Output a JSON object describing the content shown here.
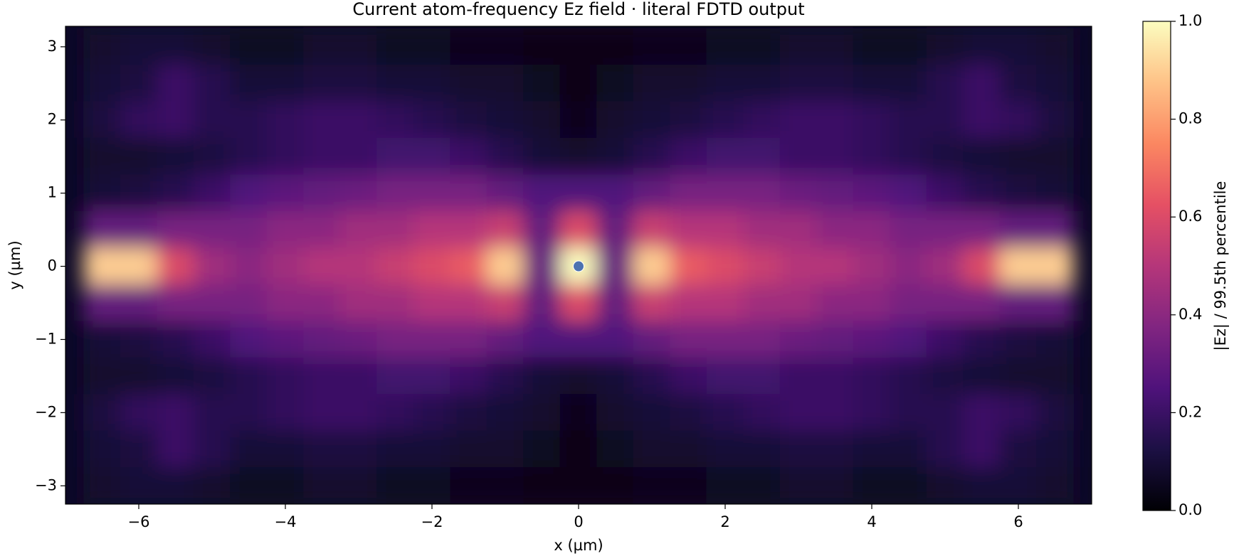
{
  "chart_data": {
    "type": "heatmap",
    "title": "Current atom-frequency Ez field · literal FDTD output",
    "xlabel": "x (µm)",
    "ylabel": "y (µm)",
    "colorbar_label": "|Ez| / 99.5th percentile",
    "colormap": "magma",
    "x": [
      -6.5,
      -6,
      -5.5,
      -5,
      -4.5,
      -4,
      -3.5,
      -3,
      -2.5,
      -2,
      -1.5,
      -1,
      -0.5,
      0,
      0.5,
      1,
      1.5,
      2,
      2.5,
      3,
      3.5,
      4,
      4.5,
      5,
      5.5,
      6,
      6.5
    ],
    "y": [
      3,
      2.5,
      2,
      1.5,
      1,
      0.5,
      0,
      -0.5,
      -1,
      -1.5,
      -2,
      -2.5,
      -3
    ],
    "z": [
      [
        0.08,
        0.1,
        0.1,
        0.08,
        0.06,
        0.06,
        0.08,
        0.08,
        0.06,
        0.06,
        0.05,
        0.05,
        0.04,
        0.04,
        0.04,
        0.05,
        0.05,
        0.06,
        0.06,
        0.08,
        0.08,
        0.06,
        0.06,
        0.08,
        0.1,
        0.1,
        0.08
      ],
      [
        0.1,
        0.12,
        0.2,
        0.15,
        0.1,
        0.1,
        0.12,
        0.12,
        0.1,
        0.1,
        0.08,
        0.08,
        0.06,
        0.04,
        0.06,
        0.08,
        0.08,
        0.1,
        0.1,
        0.12,
        0.12,
        0.1,
        0.1,
        0.15,
        0.2,
        0.12,
        0.1
      ],
      [
        0.12,
        0.18,
        0.2,
        0.15,
        0.15,
        0.18,
        0.2,
        0.2,
        0.18,
        0.15,
        0.12,
        0.1,
        0.08,
        0.05,
        0.08,
        0.1,
        0.12,
        0.15,
        0.18,
        0.2,
        0.2,
        0.18,
        0.15,
        0.15,
        0.2,
        0.18,
        0.12
      ],
      [
        0.08,
        0.08,
        0.1,
        0.12,
        0.15,
        0.18,
        0.2,
        0.2,
        0.22,
        0.22,
        0.2,
        0.15,
        0.1,
        0.08,
        0.1,
        0.15,
        0.2,
        0.22,
        0.22,
        0.2,
        0.2,
        0.18,
        0.15,
        0.12,
        0.1,
        0.08,
        0.08
      ],
      [
        0.1,
        0.12,
        0.15,
        0.2,
        0.25,
        0.28,
        0.3,
        0.32,
        0.35,
        0.35,
        0.35,
        0.3,
        0.25,
        0.25,
        0.25,
        0.3,
        0.35,
        0.35,
        0.35,
        0.32,
        0.3,
        0.28,
        0.25,
        0.2,
        0.15,
        0.12,
        0.1
      ],
      [
        0.3,
        0.3,
        0.35,
        0.35,
        0.35,
        0.4,
        0.4,
        0.45,
        0.45,
        0.5,
        0.5,
        0.55,
        0.3,
        0.6,
        0.3,
        0.55,
        0.5,
        0.5,
        0.45,
        0.45,
        0.4,
        0.4,
        0.35,
        0.35,
        0.35,
        0.3,
        0.3
      ],
      [
        0.9,
        0.9,
        0.6,
        0.45,
        0.4,
        0.45,
        0.5,
        0.5,
        0.55,
        0.6,
        0.65,
        0.9,
        0.3,
        1.0,
        0.3,
        0.9,
        0.65,
        0.6,
        0.55,
        0.5,
        0.5,
        0.45,
        0.4,
        0.45,
        0.6,
        0.9,
        0.9
      ],
      [
        0.3,
        0.3,
        0.35,
        0.35,
        0.35,
        0.4,
        0.4,
        0.45,
        0.45,
        0.5,
        0.5,
        0.55,
        0.3,
        0.6,
        0.3,
        0.55,
        0.5,
        0.5,
        0.45,
        0.45,
        0.4,
        0.4,
        0.35,
        0.35,
        0.35,
        0.3,
        0.3
      ],
      [
        0.1,
        0.12,
        0.15,
        0.2,
        0.25,
        0.28,
        0.3,
        0.32,
        0.35,
        0.35,
        0.35,
        0.3,
        0.25,
        0.25,
        0.25,
        0.3,
        0.35,
        0.35,
        0.35,
        0.32,
        0.3,
        0.28,
        0.25,
        0.2,
        0.15,
        0.12,
        0.1
      ],
      [
        0.08,
        0.08,
        0.1,
        0.12,
        0.15,
        0.18,
        0.2,
        0.2,
        0.22,
        0.22,
        0.2,
        0.15,
        0.1,
        0.08,
        0.1,
        0.15,
        0.2,
        0.22,
        0.22,
        0.2,
        0.2,
        0.18,
        0.15,
        0.12,
        0.1,
        0.08,
        0.08
      ],
      [
        0.12,
        0.18,
        0.2,
        0.15,
        0.15,
        0.18,
        0.2,
        0.2,
        0.18,
        0.15,
        0.12,
        0.1,
        0.08,
        0.05,
        0.08,
        0.1,
        0.12,
        0.15,
        0.18,
        0.2,
        0.2,
        0.18,
        0.15,
        0.15,
        0.2,
        0.18,
        0.12
      ],
      [
        0.1,
        0.12,
        0.2,
        0.15,
        0.1,
        0.1,
        0.12,
        0.12,
        0.1,
        0.1,
        0.08,
        0.08,
        0.06,
        0.04,
        0.06,
        0.08,
        0.08,
        0.1,
        0.1,
        0.12,
        0.12,
        0.1,
        0.1,
        0.15,
        0.2,
        0.12,
        0.1
      ],
      [
        0.08,
        0.1,
        0.1,
        0.08,
        0.06,
        0.06,
        0.08,
        0.08,
        0.06,
        0.06,
        0.05,
        0.05,
        0.04,
        0.04,
        0.04,
        0.05,
        0.05,
        0.06,
        0.06,
        0.08,
        0.08,
        0.06,
        0.06,
        0.08,
        0.1,
        0.1,
        0.08
      ]
    ],
    "xlim": [
      -7,
      7
    ],
    "ylim": [
      -3.25,
      3.28
    ],
    "zlim": [
      0,
      1
    ],
    "xticks": [
      {
        "value": -6,
        "label": "−6"
      },
      {
        "value": -4,
        "label": "−4"
      },
      {
        "value": -2,
        "label": "−2"
      },
      0,
      2,
      4,
      6
    ],
    "yticks": [
      {
        "value": -3,
        "label": "−3"
      },
      {
        "value": -2,
        "label": "−2"
      },
      {
        "value": -1,
        "label": "−1"
      },
      0,
      1,
      2,
      3
    ],
    "zticks": [
      {
        "value": 0,
        "label": "0.0"
      },
      {
        "value": 0.2,
        "label": "0.2"
      },
      {
        "value": 0.4,
        "label": "0.4"
      },
      {
        "value": 0.6,
        "label": "0.6"
      },
      {
        "value": 0.8,
        "label": "0.8"
      },
      {
        "value": 1,
        "label": "1.0"
      }
    ],
    "marker": {
      "x": 0,
      "y": 0,
      "color": "#4c72b0"
    }
  }
}
